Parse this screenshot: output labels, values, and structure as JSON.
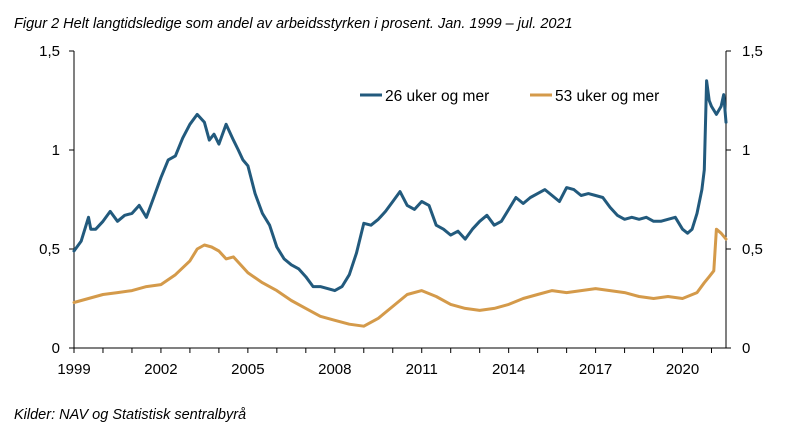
{
  "caption": "Figur 2 Helt langtidsledige som andel av arbeidsstyrken i prosent. Jan. 1999 – jul. 2021",
  "source": "Kilder: NAV og Statistisk sentralbyrå",
  "chart_data": {
    "type": "line",
    "title": "Figur 2 Helt langtidsledige som andel av arbeidsstyrken i prosent. Jan. 1999 – jul. 2021",
    "xlabel": "",
    "ylabel": "",
    "xlim": [
      1999.0,
      2021.5
    ],
    "ylim": [
      0,
      1.5
    ],
    "x_ticks": [
      1999,
      2002,
      2005,
      2008,
      2011,
      2014,
      2017,
      2020
    ],
    "x_tick_labels": [
      "1999",
      "2002",
      "2005",
      "2008",
      "2011",
      "2014",
      "2017",
      "2020"
    ],
    "y_ticks": [
      0,
      0.5,
      1,
      1.5
    ],
    "y_tick_labels_left": [
      "0",
      "0,5",
      "1",
      "1,5"
    ],
    "y_tick_labels_right": [
      "0",
      "0,5",
      "1",
      "1,5"
    ],
    "grid": false,
    "legend_position": "top-right",
    "series": [
      {
        "name": "26 uker og mer",
        "color": "#225a7d",
        "x": [
          1999.0,
          1999.25,
          1999.5,
          1999.58,
          1999.75,
          2000.0,
          2000.25,
          2000.5,
          2000.75,
          2001.0,
          2001.25,
          2001.5,
          2001.75,
          2002.0,
          2002.25,
          2002.5,
          2002.75,
          2003.0,
          2003.25,
          2003.5,
          2003.67,
          2003.83,
          2004.0,
          2004.25,
          2004.5,
          2004.67,
          2004.83,
          2005.0,
          2005.25,
          2005.5,
          2005.75,
          2006.0,
          2006.25,
          2006.5,
          2006.75,
          2007.0,
          2007.25,
          2007.5,
          2007.75,
          2008.0,
          2008.25,
          2008.5,
          2008.75,
          2009.0,
          2009.25,
          2009.5,
          2009.75,
          2010.0,
          2010.25,
          2010.5,
          2010.75,
          2011.0,
          2011.25,
          2011.5,
          2011.75,
          2012.0,
          2012.25,
          2012.5,
          2012.75,
          2013.0,
          2013.25,
          2013.5,
          2013.75,
          2014.0,
          2014.25,
          2014.5,
          2014.75,
          2015.0,
          2015.25,
          2015.5,
          2015.75,
          2016.0,
          2016.25,
          2016.5,
          2016.75,
          2017.0,
          2017.25,
          2017.5,
          2017.75,
          2018.0,
          2018.25,
          2018.5,
          2018.75,
          2019.0,
          2019.25,
          2019.5,
          2019.75,
          2020.0,
          2020.17,
          2020.33,
          2020.5,
          2020.67,
          2020.75,
          2020.83,
          2020.92,
          2021.0,
          2021.17,
          2021.33,
          2021.42,
          2021.5
        ],
        "values": [
          0.49,
          0.54,
          0.66,
          0.6,
          0.6,
          0.64,
          0.69,
          0.64,
          0.67,
          0.68,
          0.72,
          0.66,
          0.76,
          0.86,
          0.95,
          0.97,
          1.06,
          1.13,
          1.18,
          1.14,
          1.05,
          1.08,
          1.03,
          1.13,
          1.05,
          1.0,
          0.95,
          0.92,
          0.78,
          0.68,
          0.62,
          0.51,
          0.45,
          0.42,
          0.4,
          0.36,
          0.31,
          0.31,
          0.3,
          0.29,
          0.31,
          0.37,
          0.48,
          0.63,
          0.62,
          0.65,
          0.69,
          0.74,
          0.79,
          0.72,
          0.7,
          0.74,
          0.72,
          0.62,
          0.6,
          0.57,
          0.59,
          0.55,
          0.6,
          0.64,
          0.67,
          0.62,
          0.64,
          0.7,
          0.76,
          0.73,
          0.76,
          0.78,
          0.8,
          0.77,
          0.74,
          0.81,
          0.8,
          0.77,
          0.78,
          0.77,
          0.76,
          0.71,
          0.67,
          0.65,
          0.66,
          0.65,
          0.66,
          0.64,
          0.64,
          0.65,
          0.66,
          0.6,
          0.58,
          0.6,
          0.68,
          0.8,
          0.9,
          1.35,
          1.25,
          1.22,
          1.18,
          1.22,
          1.28,
          1.14
        ]
      },
      {
        "name": "53 uker og mer",
        "color": "#d49a4a",
        "x": [
          1999.0,
          1999.5,
          2000.0,
          2000.5,
          2001.0,
          2001.5,
          2002.0,
          2002.5,
          2003.0,
          2003.25,
          2003.5,
          2003.75,
          2004.0,
          2004.25,
          2004.5,
          2004.75,
          2005.0,
          2005.5,
          2006.0,
          2006.5,
          2007.0,
          2007.5,
          2008.0,
          2008.5,
          2009.0,
          2009.5,
          2010.0,
          2010.5,
          2011.0,
          2011.5,
          2012.0,
          2012.5,
          2013.0,
          2013.5,
          2014.0,
          2014.5,
          2015.0,
          2015.5,
          2016.0,
          2016.5,
          2017.0,
          2017.5,
          2018.0,
          2018.5,
          2019.0,
          2019.5,
          2020.0,
          2020.5,
          2020.75,
          2020.92,
          2021.08,
          2021.17,
          2021.33,
          2021.5
        ],
        "values": [
          0.23,
          0.25,
          0.27,
          0.28,
          0.29,
          0.31,
          0.32,
          0.37,
          0.44,
          0.5,
          0.52,
          0.51,
          0.49,
          0.45,
          0.46,
          0.42,
          0.38,
          0.33,
          0.29,
          0.24,
          0.2,
          0.16,
          0.14,
          0.12,
          0.11,
          0.15,
          0.21,
          0.27,
          0.29,
          0.26,
          0.22,
          0.2,
          0.19,
          0.2,
          0.22,
          0.25,
          0.27,
          0.29,
          0.28,
          0.29,
          0.3,
          0.29,
          0.28,
          0.26,
          0.25,
          0.26,
          0.25,
          0.28,
          0.33,
          0.36,
          0.39,
          0.6,
          0.58,
          0.55
        ]
      }
    ]
  }
}
